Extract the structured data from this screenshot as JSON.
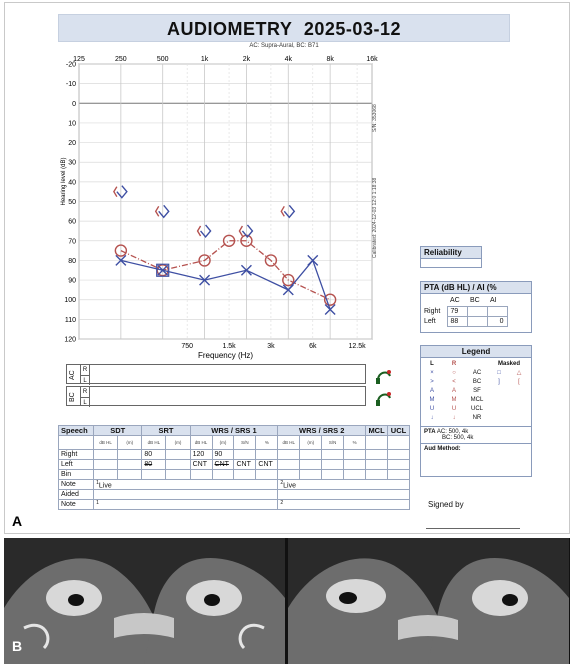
{
  "panels": {
    "a_label": "A",
    "b_label": "B"
  },
  "header": {
    "title_word": "AUDIOMETRY",
    "date": "2025-03-12",
    "subtitle": "AC: Supra-Aural, BC: B71"
  },
  "side_notes": {
    "sn": "S/N: 353068",
    "calibrated": "Calibrated: 2024-12-03 12:0 1:18:38"
  },
  "audiogram": {
    "ylabel": "Hearing level (dB)",
    "xlabel": "Frequency (Hz)",
    "top_ticks": [
      "125",
      "250",
      "500",
      "1k",
      "2k",
      "4k",
      "8k",
      "16k"
    ],
    "bottom_ticks": [
      "750",
      "1.5k",
      "3k",
      "6k",
      "12.5k"
    ],
    "y_ticks": [
      "-20",
      "-10",
      "0",
      "10",
      "20",
      "30",
      "40",
      "50",
      "60",
      "70",
      "80",
      "90",
      "100",
      "110",
      "120"
    ]
  },
  "chart_data": {
    "type": "line",
    "title": "AUDIOMETRY 2025-03-12",
    "xlabel": "Frequency (Hz)",
    "ylabel": "Hearing level (dB)",
    "xscale": "log",
    "ylim": [
      -20,
      120
    ],
    "y_inverted": true,
    "xlim": [
      125,
      16000
    ],
    "grid": true,
    "series": [
      {
        "name": "Right AC",
        "color": "#b5524f",
        "marker": "circle",
        "line": "dashdot",
        "x": [
          250,
          500,
          1000,
          1500,
          2000,
          3000,
          4000,
          8000
        ],
        "y": [
          75,
          85,
          80,
          70,
          70,
          80,
          90,
          100
        ]
      },
      {
        "name": "Left AC",
        "color": "#3e4fa3",
        "marker": "x",
        "line": "solid",
        "x": [
          250,
          500,
          1000,
          2000,
          4000,
          6000,
          8000
        ],
        "y": [
          80,
          85,
          90,
          85,
          95,
          80,
          105
        ]
      },
      {
        "name": "BC",
        "color": "#3e4fa3",
        "marker": "bracket",
        "x": [
          250,
          500,
          1000,
          2000,
          4000
        ],
        "y": [
          45,
          55,
          65,
          65,
          55
        ]
      }
    ]
  },
  "transducer": {
    "ac": "AC",
    "bc": "BC",
    "r": "R",
    "l": "L"
  },
  "reliability": {
    "label": "Reliability"
  },
  "pta_box": {
    "header": "PTA (dB HL) / AI (%",
    "cols": [
      "AC",
      "BC",
      "AI"
    ],
    "rows": [
      {
        "label": "Right",
        "ac": "79",
        "bc": "",
        "ai": ""
      },
      {
        "label": "Left",
        "ac": "88",
        "bc": "",
        "ai": "0"
      }
    ]
  },
  "legend": {
    "header": "Legend",
    "col_l": "L",
    "col_r": "R",
    "col_masked": "Masked",
    "rows": [
      {
        "l": "×",
        "r": "○",
        "type": "AC",
        "m1": "□",
        "m2": "△"
      },
      {
        "l": ">",
        "r": "<",
        "type": "BC",
        "m1": "]",
        "m2": "["
      },
      {
        "l": "A",
        "r": "A",
        "type": "SF",
        "m1": "",
        "m2": ""
      },
      {
        "l": "M",
        "r": "M",
        "type": "MCL",
        "m1": "",
        "m2": ""
      },
      {
        "l": "U",
        "r": "U",
        "type": "UCL",
        "m1": "",
        "m2": ""
      },
      {
        "l": "↓",
        "r": "↓",
        "type": "NR",
        "m1": "",
        "m2": ""
      }
    ],
    "pta_label": "PTA",
    "pta_ac": "AC: 500, 4k",
    "pta_bc": "BC: 500, 4k",
    "aud_method": "Aud Method:"
  },
  "speech": {
    "headers": [
      "Speech",
      "SDT",
      "SRT",
      "WRS / SRS 1",
      "WRS / SRS 2",
      "MCL",
      "UCL"
    ],
    "subunits": [
      "dB HL",
      "(m)",
      "dB HL",
      "(m)",
      "dB HL",
      "(m)",
      "S/N",
      "%",
      "dB HL",
      "(m)",
      "S/N",
      "%"
    ],
    "rows": [
      {
        "label": "Right",
        "srt": "80",
        "wrs1_a": "120",
        "wrs1_b": "90",
        "c1": "",
        "c2": ""
      },
      {
        "label": "Left",
        "srt": "80",
        "wrs1_a": "CNT",
        "wrs1_b": "CNT",
        "c1": "CNT",
        "c2": "CNT"
      },
      {
        "label": "Bin",
        "srt": "",
        "wrs1_a": "",
        "wrs1_b": "",
        "c1": "",
        "c2": ""
      }
    ],
    "note_label": "Note",
    "note1": "Live",
    "note2": "Live",
    "aided_label": "Aided",
    "note2_label": "Note",
    "idx1": "1",
    "idx2": "2"
  },
  "signed": {
    "label": "Signed by"
  }
}
